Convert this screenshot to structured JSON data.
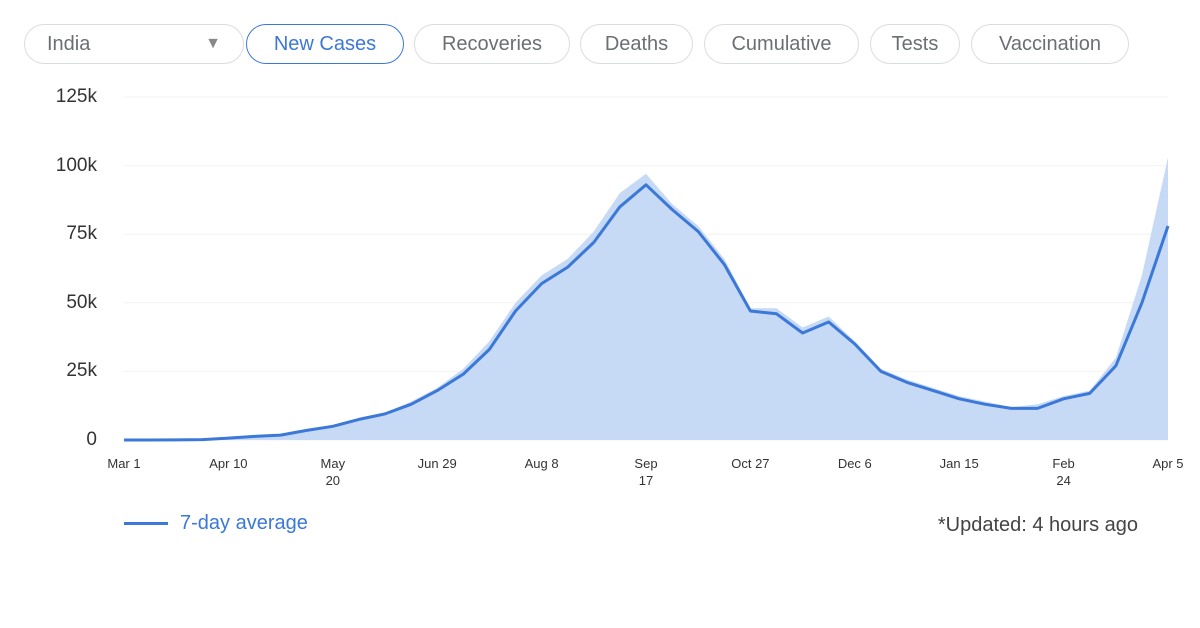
{
  "controls": {
    "region": "India",
    "tabs": [
      "New Cases",
      "Recoveries",
      "Deaths",
      "Cumulative",
      "Tests",
      "Vaccination"
    ],
    "active_tab": 0
  },
  "chart_data": {
    "type": "line",
    "x": [
      "Mar 1",
      null,
      null,
      null,
      "Apr 10",
      null,
      null,
      null,
      "May 20",
      null,
      null,
      null,
      "Jun 29",
      null,
      null,
      null,
      "Aug 8",
      null,
      null,
      null,
      "Sep 17",
      null,
      null,
      null,
      "Oct 27",
      null,
      null,
      null,
      "Dec 6",
      null,
      null,
      null,
      "Jan 15",
      null,
      null,
      null,
      "Feb 24",
      null,
      null,
      null,
      "Apr 5"
    ],
    "series": [
      {
        "color": "#c6d9f5",
        "style": "area",
        "values": [
          0,
          20,
          60,
          250,
          900,
          1500,
          2000,
          3800,
          5500,
          8000,
          10000,
          14000,
          19000,
          26000,
          36000,
          50000,
          60000,
          66000,
          76000,
          90000,
          97000,
          86000,
          78000,
          66000,
          48000,
          48000,
          41000,
          45000,
          36000,
          26000,
          22000,
          19000,
          16000,
          14000,
          12000,
          13000,
          16000,
          18000,
          30000,
          60000,
          103000
        ]
      },
      {
        "name": "7-day average",
        "color": "#3b78d8",
        "values": [
          0,
          10,
          40,
          150,
          700,
          1300,
          1800,
          3500,
          5000,
          7500,
          9500,
          13000,
          18000,
          24000,
          33000,
          47000,
          57000,
          63000,
          72000,
          85000,
          93000,
          84000,
          76000,
          64000,
          47000,
          46000,
          39000,
          43000,
          35000,
          25000,
          21000,
          18000,
          15000,
          13000,
          11500,
          11500,
          15000,
          17000,
          27000,
          50000,
          78000
        ]
      }
    ],
    "ylim": [
      0,
      125000
    ],
    "yticks": [
      0,
      {
        "value": 25000,
        "label": "25k"
      },
      {
        "value": 50000,
        "label": "50k"
      },
      {
        "value": 75000,
        "label": "75k"
      },
      {
        "value": 100000,
        "label": "100k"
      },
      {
        "value": 125000,
        "label": "125k"
      }
    ],
    "grid": true
  },
  "footnote": "*Updated: 4 hours ago"
}
